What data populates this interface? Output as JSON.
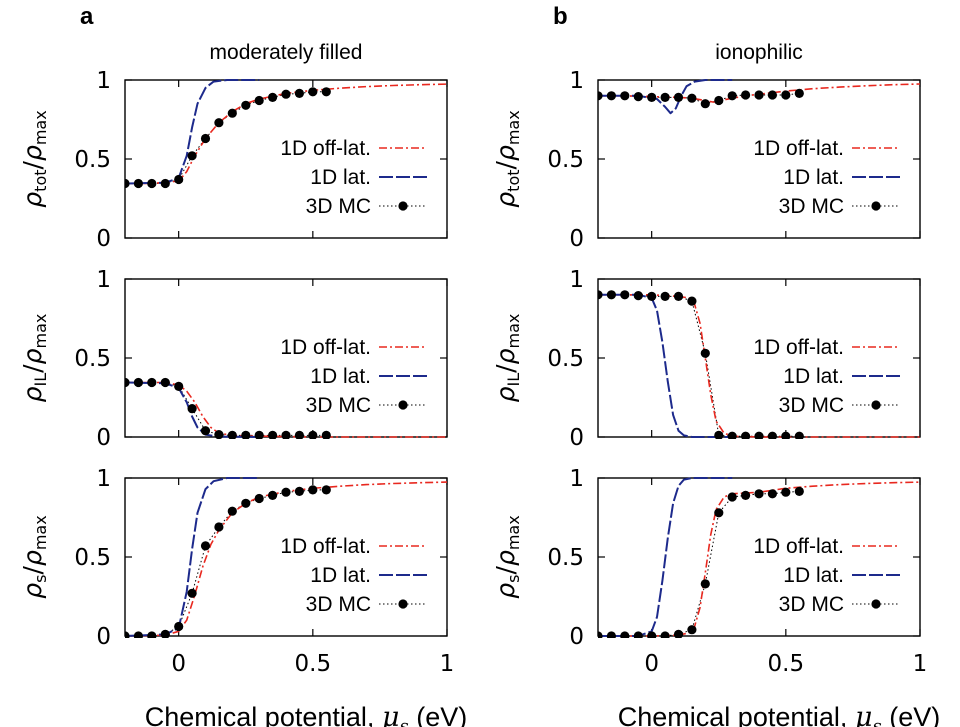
{
  "chart_data": {
    "type": "line",
    "columns": [
      {
        "letter": "a",
        "title": "moderately filled"
      },
      {
        "letter": "b",
        "title": "ionophilic"
      }
    ],
    "xlabel": {
      "main": "Chemical potential, ",
      "symbol": "μ",
      "sub": "s",
      "unit": " (eV)"
    },
    "xlim": [
      -0.2,
      1.0
    ],
    "xticks": [
      {
        "v": 0,
        "label": "0"
      },
      {
        "v": 0.5,
        "label": "0.5"
      },
      {
        "v": 1,
        "label": "1"
      }
    ],
    "ylim": [
      0,
      1
    ],
    "yticks": [
      {
        "v": 0,
        "label": "0"
      },
      {
        "v": 0.5,
        "label": "0.5"
      },
      {
        "v": 1,
        "label": "1"
      }
    ],
    "row_ylabels": [
      {
        "num": "ρ",
        "num_sub": "tot",
        "slash": "/",
        "den": "ρ",
        "den_sub": "max"
      },
      {
        "num": "ρ",
        "num_sub": "IL",
        "slash": "/",
        "den": "ρ",
        "den_sub": "max"
      },
      {
        "num": "ρ",
        "num_sub": "s",
        "slash": "/",
        "den": "ρ",
        "den_sub": "max"
      }
    ],
    "legend": [
      "1D off-lat.",
      "1D lat.",
      "3D MC"
    ],
    "colors": {
      "off_lattice": "#e8281f",
      "lattice": "#1d2a8c",
      "mc": "#000000"
    },
    "panels": [
      {
        "id": "a-tot",
        "off_lattice": [
          [
            -0.2,
            0.345
          ],
          [
            -0.1,
            0.345
          ],
          [
            0.0,
            0.36
          ],
          [
            0.03,
            0.42
          ],
          [
            0.06,
            0.52
          ],
          [
            0.1,
            0.63
          ],
          [
            0.15,
            0.73
          ],
          [
            0.2,
            0.8
          ],
          [
            0.25,
            0.85
          ],
          [
            0.3,
            0.88
          ],
          [
            0.4,
            0.915
          ],
          [
            0.5,
            0.935
          ],
          [
            0.6,
            0.948
          ],
          [
            0.7,
            0.958
          ],
          [
            0.8,
            0.965
          ],
          [
            0.9,
            0.97
          ],
          [
            1.0,
            0.974
          ]
        ],
        "lattice": [
          [
            -0.2,
            0.345
          ],
          [
            -0.05,
            0.35
          ],
          [
            0.0,
            0.38
          ],
          [
            0.03,
            0.52
          ],
          [
            0.05,
            0.7
          ],
          [
            0.07,
            0.85
          ],
          [
            0.1,
            0.95
          ],
          [
            0.13,
            0.99
          ],
          [
            0.18,
            1.0
          ],
          [
            0.3,
            1.0
          ]
        ],
        "mc": [
          [
            -0.2,
            0.345
          ],
          [
            -0.15,
            0.345
          ],
          [
            -0.1,
            0.345
          ],
          [
            -0.05,
            0.345
          ],
          [
            0.0,
            0.37
          ],
          [
            0.05,
            0.52
          ],
          [
            0.1,
            0.63
          ],
          [
            0.15,
            0.73
          ],
          [
            0.2,
            0.79
          ],
          [
            0.25,
            0.84
          ],
          [
            0.3,
            0.87
          ],
          [
            0.35,
            0.89
          ],
          [
            0.4,
            0.91
          ],
          [
            0.45,
            0.915
          ],
          [
            0.5,
            0.925
          ],
          [
            0.55,
            0.925
          ]
        ]
      },
      {
        "id": "b-tot",
        "off_lattice": [
          [
            -0.2,
            0.9
          ],
          [
            -0.1,
            0.9
          ],
          [
            0.0,
            0.895
          ],
          [
            0.1,
            0.89
          ],
          [
            0.15,
            0.885
          ],
          [
            0.2,
            0.87
          ],
          [
            0.23,
            0.86
          ],
          [
            0.27,
            0.875
          ],
          [
            0.35,
            0.9
          ],
          [
            0.5,
            0.93
          ],
          [
            0.6,
            0.945
          ],
          [
            0.7,
            0.955
          ],
          [
            0.8,
            0.963
          ],
          [
            0.9,
            0.97
          ],
          [
            1.0,
            0.975
          ]
        ],
        "lattice": [
          [
            -0.2,
            0.9
          ],
          [
            -0.05,
            0.9
          ],
          [
            0.02,
            0.88
          ],
          [
            0.05,
            0.83
          ],
          [
            0.07,
            0.79
          ],
          [
            0.09,
            0.82
          ],
          [
            0.11,
            0.9
          ],
          [
            0.13,
            0.96
          ],
          [
            0.16,
            0.99
          ],
          [
            0.2,
            1.0
          ],
          [
            0.3,
            1.0
          ]
        ],
        "mc": [
          [
            -0.2,
            0.9
          ],
          [
            -0.15,
            0.9
          ],
          [
            -0.1,
            0.9
          ],
          [
            -0.05,
            0.895
          ],
          [
            0.0,
            0.89
          ],
          [
            0.05,
            0.89
          ],
          [
            0.1,
            0.89
          ],
          [
            0.15,
            0.885
          ],
          [
            0.2,
            0.85
          ],
          [
            0.25,
            0.87
          ],
          [
            0.3,
            0.9
          ],
          [
            0.35,
            0.905
          ],
          [
            0.4,
            0.905
          ],
          [
            0.45,
            0.905
          ],
          [
            0.5,
            0.905
          ],
          [
            0.55,
            0.915
          ]
        ]
      },
      {
        "id": "a-il",
        "off_lattice": [
          [
            -0.2,
            0.345
          ],
          [
            -0.05,
            0.345
          ],
          [
            0.0,
            0.33
          ],
          [
            0.03,
            0.29
          ],
          [
            0.06,
            0.22
          ],
          [
            0.09,
            0.13
          ],
          [
            0.12,
            0.06
          ],
          [
            0.15,
            0.025
          ],
          [
            0.2,
            0.01
          ],
          [
            0.3,
            0.005
          ],
          [
            0.5,
            0.0
          ],
          [
            1.0,
            0.0
          ]
        ],
        "lattice": [
          [
            -0.2,
            0.345
          ],
          [
            -0.05,
            0.34
          ],
          [
            0.0,
            0.31
          ],
          [
            0.03,
            0.22
          ],
          [
            0.05,
            0.13
          ],
          [
            0.07,
            0.06
          ],
          [
            0.1,
            0.015
          ],
          [
            0.15,
            0.002
          ],
          [
            0.3,
            0.0
          ]
        ],
        "mc": [
          [
            -0.2,
            0.345
          ],
          [
            -0.15,
            0.345
          ],
          [
            -0.1,
            0.345
          ],
          [
            -0.05,
            0.345
          ],
          [
            0.0,
            0.32
          ],
          [
            0.05,
            0.18
          ],
          [
            0.1,
            0.04
          ],
          [
            0.15,
            0.015
          ],
          [
            0.2,
            0.01
          ],
          [
            0.25,
            0.01
          ],
          [
            0.3,
            0.01
          ],
          [
            0.35,
            0.01
          ],
          [
            0.4,
            0.01
          ],
          [
            0.45,
            0.01
          ],
          [
            0.5,
            0.01
          ],
          [
            0.55,
            0.01
          ]
        ]
      },
      {
        "id": "b-il",
        "off_lattice": [
          [
            -0.2,
            0.9
          ],
          [
            0.0,
            0.9
          ],
          [
            0.1,
            0.89
          ],
          [
            0.14,
            0.88
          ],
          [
            0.16,
            0.84
          ],
          [
            0.18,
            0.72
          ],
          [
            0.2,
            0.5
          ],
          [
            0.22,
            0.27
          ],
          [
            0.24,
            0.1
          ],
          [
            0.27,
            0.025
          ],
          [
            0.3,
            0.005
          ],
          [
            0.4,
            0.0
          ],
          [
            1.0,
            0.0
          ]
        ],
        "lattice": [
          [
            -0.2,
            0.9
          ],
          [
            -0.05,
            0.9
          ],
          [
            0.0,
            0.88
          ],
          [
            0.02,
            0.8
          ],
          [
            0.04,
            0.6
          ],
          [
            0.06,
            0.35
          ],
          [
            0.08,
            0.14
          ],
          [
            0.1,
            0.04
          ],
          [
            0.12,
            0.01
          ],
          [
            0.15,
            0.0
          ],
          [
            0.3,
            0.0
          ]
        ],
        "mc": [
          [
            -0.2,
            0.9
          ],
          [
            -0.15,
            0.9
          ],
          [
            -0.1,
            0.9
          ],
          [
            -0.05,
            0.895
          ],
          [
            0.0,
            0.89
          ],
          [
            0.05,
            0.89
          ],
          [
            0.1,
            0.89
          ],
          [
            0.15,
            0.86
          ],
          [
            0.2,
            0.53
          ],
          [
            0.25,
            0.01
          ],
          [
            0.3,
            0.005
          ],
          [
            0.35,
            0.005
          ],
          [
            0.4,
            0.005
          ],
          [
            0.45,
            0.005
          ],
          [
            0.5,
            0.005
          ],
          [
            0.55,
            0.005
          ]
        ]
      },
      {
        "id": "a-s",
        "off_lattice": [
          [
            -0.2,
            0.0
          ],
          [
            -0.05,
            0.005
          ],
          [
            0.0,
            0.03
          ],
          [
            0.03,
            0.1
          ],
          [
            0.06,
            0.26
          ],
          [
            0.09,
            0.44
          ],
          [
            0.12,
            0.58
          ],
          [
            0.15,
            0.67
          ],
          [
            0.2,
            0.78
          ],
          [
            0.25,
            0.84
          ],
          [
            0.3,
            0.88
          ],
          [
            0.4,
            0.915
          ],
          [
            0.5,
            0.935
          ],
          [
            0.6,
            0.948
          ],
          [
            0.7,
            0.958
          ],
          [
            0.8,
            0.965
          ],
          [
            0.9,
            0.97
          ],
          [
            1.0,
            0.974
          ]
        ],
        "lattice": [
          [
            -0.2,
            0.0
          ],
          [
            -0.05,
            0.01
          ],
          [
            0.0,
            0.05
          ],
          [
            0.03,
            0.28
          ],
          [
            0.05,
            0.55
          ],
          [
            0.07,
            0.78
          ],
          [
            0.1,
            0.93
          ],
          [
            0.13,
            0.98
          ],
          [
            0.18,
            1.0
          ],
          [
            0.3,
            1.0
          ]
        ],
        "mc": [
          [
            -0.2,
            0.0
          ],
          [
            -0.15,
            0.0
          ],
          [
            -0.1,
            0.0
          ],
          [
            -0.05,
            0.01
          ],
          [
            0.0,
            0.06
          ],
          [
            0.05,
            0.27
          ],
          [
            0.1,
            0.57
          ],
          [
            0.15,
            0.69
          ],
          [
            0.2,
            0.79
          ],
          [
            0.25,
            0.84
          ],
          [
            0.3,
            0.87
          ],
          [
            0.35,
            0.89
          ],
          [
            0.4,
            0.91
          ],
          [
            0.45,
            0.915
          ],
          [
            0.5,
            0.925
          ],
          [
            0.55,
            0.925
          ]
        ]
      },
      {
        "id": "b-s",
        "off_lattice": [
          [
            -0.2,
            0.0
          ],
          [
            0.0,
            0.0
          ],
          [
            0.1,
            0.005
          ],
          [
            0.14,
            0.02
          ],
          [
            0.16,
            0.06
          ],
          [
            0.18,
            0.18
          ],
          [
            0.2,
            0.4
          ],
          [
            0.22,
            0.64
          ],
          [
            0.24,
            0.8
          ],
          [
            0.27,
            0.88
          ],
          [
            0.3,
            0.9
          ],
          [
            0.4,
            0.91
          ],
          [
            0.5,
            0.935
          ],
          [
            0.6,
            0.948
          ],
          [
            0.7,
            0.958
          ],
          [
            0.8,
            0.965
          ],
          [
            0.9,
            0.97
          ],
          [
            1.0,
            0.974
          ]
        ],
        "lattice": [
          [
            -0.2,
            0.0
          ],
          [
            -0.05,
            0.0
          ],
          [
            0.0,
            0.03
          ],
          [
            0.02,
            0.12
          ],
          [
            0.04,
            0.35
          ],
          [
            0.06,
            0.62
          ],
          [
            0.08,
            0.84
          ],
          [
            0.1,
            0.95
          ],
          [
            0.12,
            0.99
          ],
          [
            0.15,
            1.0
          ],
          [
            0.3,
            1.0
          ]
        ],
        "mc": [
          [
            -0.2,
            0.0
          ],
          [
            -0.15,
            0.0
          ],
          [
            -0.1,
            0.0
          ],
          [
            -0.05,
            0.0
          ],
          [
            0.0,
            0.0
          ],
          [
            0.05,
            0.0
          ],
          [
            0.1,
            0.01
          ],
          [
            0.15,
            0.04
          ],
          [
            0.2,
            0.33
          ],
          [
            0.25,
            0.78
          ],
          [
            0.3,
            0.88
          ],
          [
            0.35,
            0.89
          ],
          [
            0.4,
            0.9
          ],
          [
            0.45,
            0.9
          ],
          [
            0.5,
            0.91
          ],
          [
            0.55,
            0.915
          ]
        ]
      }
    ]
  }
}
